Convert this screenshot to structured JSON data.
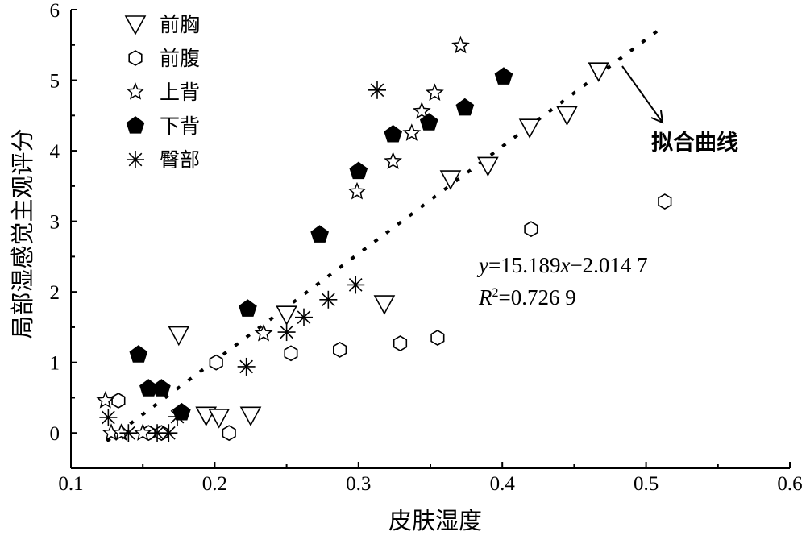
{
  "chart_data": {
    "type": "scatter",
    "title": "",
    "xlabel": "皮肤湿度",
    "ylabel": "局部湿感觉主观评分",
    "xlim": [
      0.1,
      0.6
    ],
    "ylim": [
      -0.5,
      6
    ],
    "xticks": [
      "0.1",
      "0.2",
      "0.3",
      "0.4",
      "0.5",
      "0.6"
    ],
    "yticks": [
      "0",
      "1",
      "2",
      "3",
      "4",
      "5",
      "6"
    ],
    "grid": false,
    "legend_position": "top-left",
    "series": [
      {
        "name": "前胸",
        "marker": "triangle-down-open",
        "points": [
          [
            0.175,
            1.39
          ],
          [
            0.194,
            0.25
          ],
          [
            0.203,
            0.22
          ],
          [
            0.225,
            0.25
          ],
          [
            0.25,
            1.68
          ],
          [
            0.318,
            1.83
          ],
          [
            0.364,
            3.6
          ],
          [
            0.39,
            3.79
          ],
          [
            0.419,
            4.33
          ],
          [
            0.445,
            4.51
          ],
          [
            0.467,
            5.13
          ]
        ]
      },
      {
        "name": "前腹",
        "marker": "hexagon-open",
        "points": [
          [
            0.133,
            0.46
          ],
          [
            0.154,
            0.0
          ],
          [
            0.163,
            0.0
          ],
          [
            0.201,
            1.0
          ],
          [
            0.21,
            0.0
          ],
          [
            0.253,
            1.13
          ],
          [
            0.287,
            1.18
          ],
          [
            0.329,
            1.27
          ],
          [
            0.355,
            1.35
          ],
          [
            0.42,
            2.89
          ],
          [
            0.513,
            3.28
          ]
        ]
      },
      {
        "name": "上背",
        "marker": "star-open",
        "points": [
          [
            0.124,
            0.46
          ],
          [
            0.128,
            0.0
          ],
          [
            0.135,
            0.0
          ],
          [
            0.15,
            0.0
          ],
          [
            0.234,
            1.41
          ],
          [
            0.299,
            3.42
          ],
          [
            0.324,
            3.85
          ],
          [
            0.337,
            4.25
          ],
          [
            0.344,
            4.56
          ],
          [
            0.353,
            4.82
          ],
          [
            0.371,
            5.49
          ]
        ]
      },
      {
        "name": "下背",
        "marker": "pentagon-filled",
        "points": [
          [
            0.147,
            1.11
          ],
          [
            0.154,
            0.63
          ],
          [
            0.163,
            0.63
          ],
          [
            0.177,
            0.29
          ],
          [
            0.223,
            1.76
          ],
          [
            0.273,
            2.81
          ],
          [
            0.3,
            3.71
          ],
          [
            0.324,
            4.23
          ],
          [
            0.349,
            4.4
          ],
          [
            0.374,
            4.61
          ],
          [
            0.401,
            5.05
          ]
        ]
      },
      {
        "name": "臀部",
        "marker": "asterisk",
        "points": [
          [
            0.126,
            0.22
          ],
          [
            0.14,
            0.0
          ],
          [
            0.16,
            0.0
          ],
          [
            0.168,
            0.0
          ],
          [
            0.174,
            0.23
          ],
          [
            0.222,
            0.94
          ],
          [
            0.25,
            1.43
          ],
          [
            0.262,
            1.64
          ],
          [
            0.279,
            1.89
          ],
          [
            0.298,
            2.1
          ],
          [
            0.313,
            4.86
          ]
        ]
      }
    ],
    "fit": {
      "slope": 15.189,
      "intercept": -2.0147,
      "x_range": [
        0.125,
        0.51
      ],
      "equation_y": "y",
      "equation_rest1": "=15.189",
      "equation_x": "x",
      "equation_rest2": "−2.014 7",
      "r2_label": "R",
      "r2_sup": "2",
      "r2_rest": "=0.726 9",
      "annotation": "拟合曲线"
    }
  }
}
